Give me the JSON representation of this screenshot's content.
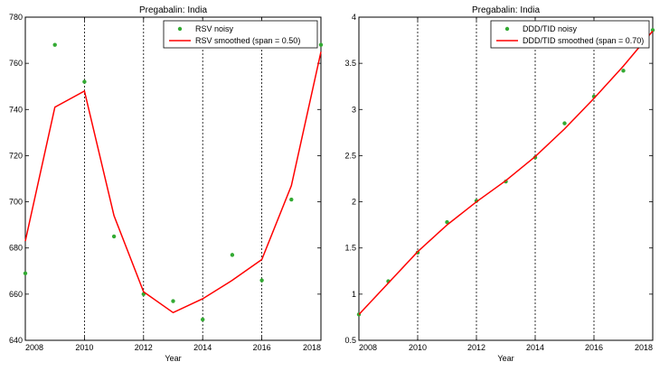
{
  "chart_data": [
    {
      "type": "line",
      "title": "Pregabalin: India",
      "xlabel": "Year",
      "ylabel": "",
      "xlim": [
        2008,
        2018
      ],
      "ylim": [
        640,
        780
      ],
      "x_ticks": [
        2008,
        2010,
        2012,
        2014,
        2016,
        2018
      ],
      "y_ticks": [
        640,
        660,
        680,
        700,
        720,
        740,
        760,
        780
      ],
      "y_tick_labels": [
        "640",
        "660",
        "680",
        "700",
        "720",
        "740",
        "760",
        "780"
      ],
      "grid": "vertical dashed",
      "legend": "top-right",
      "series": [
        {
          "name": "RSV noisy",
          "style": "points",
          "color": "#33aa33",
          "x": [
            2008,
            2009,
            2010,
            2011,
            2012,
            2013,
            2014,
            2015,
            2016,
            2017,
            2018
          ],
          "y": [
            669,
            768,
            752,
            685,
            660,
            657,
            649,
            677,
            666,
            701,
            768
          ]
        },
        {
          "name": "RSV smoothed (span = 0.50)",
          "style": "line",
          "color": "#ff0000",
          "x": [
            2008,
            2009,
            2010,
            2011,
            2012,
            2013,
            2014,
            2015,
            2016,
            2017,
            2018
          ],
          "y": [
            683,
            741,
            748,
            694,
            661,
            652,
            658,
            666,
            675,
            707,
            765
          ]
        }
      ]
    },
    {
      "type": "line",
      "title": "Pregabalin: India",
      "xlabel": "Year",
      "ylabel": "",
      "xlim": [
        2008,
        2018
      ],
      "ylim": [
        0.5,
        4
      ],
      "x_ticks": [
        2008,
        2010,
        2012,
        2014,
        2016,
        2018
      ],
      "y_ticks": [
        0.5,
        1,
        1.5,
        2,
        2.5,
        3,
        3.5,
        4
      ],
      "y_tick_labels": [
        "0.5",
        "1",
        "1.5",
        "2",
        "2.5",
        "3",
        "3.5",
        "4"
      ],
      "grid": "vertical dashed",
      "legend": "top-right",
      "series": [
        {
          "name": "DDD/TID noisy",
          "style": "points",
          "color": "#33aa33",
          "x": [
            2008,
            2009,
            2010,
            2011,
            2012,
            2013,
            2014,
            2015,
            2016,
            2017,
            2018
          ],
          "y": [
            0.78,
            1.14,
            1.45,
            1.78,
            2.01,
            2.22,
            2.48,
            2.85,
            3.14,
            3.42,
            3.86
          ]
        },
        {
          "name": "DDD/TID smoothed (span = 0.70)",
          "style": "line",
          "color": "#ff0000",
          "x": [
            2008,
            2009,
            2010,
            2011,
            2012,
            2013,
            2014,
            2015,
            2016,
            2017,
            2018
          ],
          "y": [
            0.78,
            1.12,
            1.46,
            1.75,
            2.0,
            2.23,
            2.49,
            2.79,
            3.12,
            3.47,
            3.85
          ]
        }
      ]
    }
  ]
}
